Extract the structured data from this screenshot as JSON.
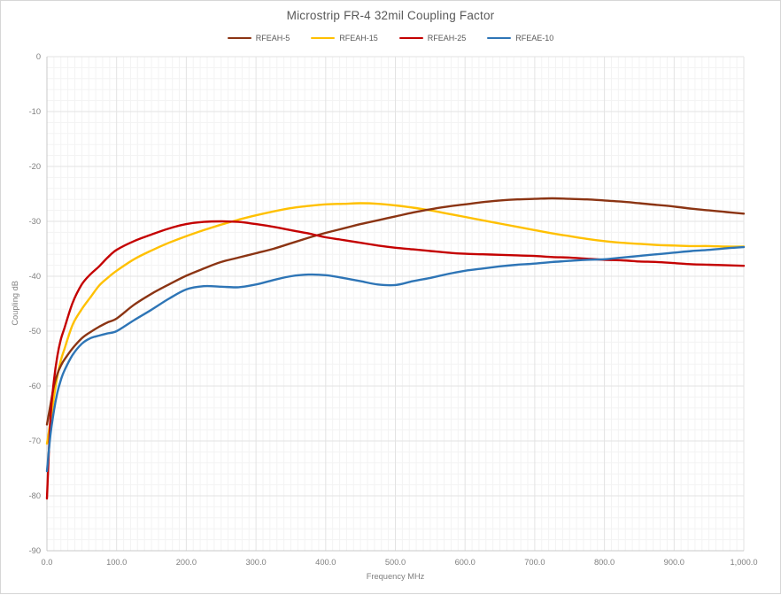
{
  "title": "Microstrip FR-4 32mil Coupling Factor",
  "legend": [
    {
      "label": "RFEAH-5",
      "color": "#8B3413"
    },
    {
      "label": "RFEAH-15",
      "color": "#FFC000"
    },
    {
      "label": "RFEAH-25",
      "color": "#C40000"
    },
    {
      "label": "RFEAE-10",
      "color": "#2E75B6"
    }
  ],
  "chart_data": {
    "type": "line",
    "title": "Microstrip FR-4 32mil Coupling Factor",
    "xlabel": "Frequency MHz",
    "ylabel": "Coupling dB",
    "xlim": [
      0,
      1000
    ],
    "ylim": [
      -90,
      0
    ],
    "x_major_step": 100,
    "x_minor_step": 10,
    "y_major_step": 10,
    "y_minor_step": 2,
    "grid": "major+minor",
    "legend_position": "top",
    "x_tick_labels": [
      "0.0",
      "100.0",
      "200.0",
      "300.0",
      "400.0",
      "500.0",
      "600.0",
      "700.0",
      "800.0",
      "900.0",
      "1,000.0"
    ],
    "y_tick_labels": [
      "0",
      "-10",
      "-20",
      "-30",
      "-40",
      "-50",
      "-60",
      "-70",
      "-80",
      "-90"
    ],
    "series": [
      {
        "name": "RFEAH-5",
        "color": "#8B3413",
        "points": [
          [
            0,
            -67
          ],
          [
            5,
            -63.5
          ],
          [
            10,
            -60
          ],
          [
            15,
            -57.8
          ],
          [
            20,
            -56.3
          ],
          [
            25,
            -55.2
          ],
          [
            37,
            -53.1
          ],
          [
            50,
            -51.3
          ],
          [
            62,
            -50.2
          ],
          [
            75,
            -49.2
          ],
          [
            87,
            -48.4
          ],
          [
            100,
            -47.7
          ],
          [
            125,
            -45.2
          ],
          [
            150,
            -43.2
          ],
          [
            175,
            -41.5
          ],
          [
            200,
            -39.9
          ],
          [
            225,
            -38.6
          ],
          [
            250,
            -37.4
          ],
          [
            275,
            -36.6
          ],
          [
            300,
            -35.8
          ],
          [
            325,
            -35
          ],
          [
            350,
            -34
          ],
          [
            375,
            -33
          ],
          [
            400,
            -32.1
          ],
          [
            425,
            -31.3
          ],
          [
            450,
            -30.5
          ],
          [
            475,
            -29.8
          ],
          [
            500,
            -29.1
          ],
          [
            525,
            -28.4
          ],
          [
            550,
            -27.8
          ],
          [
            575,
            -27.3
          ],
          [
            600,
            -26.9
          ],
          [
            625,
            -26.5
          ],
          [
            650,
            -26.2
          ],
          [
            675,
            -26
          ],
          [
            700,
            -25.9
          ],
          [
            725,
            -25.8
          ],
          [
            750,
            -25.9
          ],
          [
            775,
            -26
          ],
          [
            800,
            -26.2
          ],
          [
            825,
            -26.4
          ],
          [
            850,
            -26.7
          ],
          [
            875,
            -27
          ],
          [
            900,
            -27.3
          ],
          [
            925,
            -27.7
          ],
          [
            950,
            -28
          ],
          [
            975,
            -28.3
          ],
          [
            1000,
            -28.6
          ]
        ]
      },
      {
        "name": "RFEAH-15",
        "color": "#FFC000",
        "points": [
          [
            0,
            -70.5
          ],
          [
            5,
            -66.5
          ],
          [
            10,
            -62
          ],
          [
            15,
            -58.2
          ],
          [
            20,
            -55.3
          ],
          [
            25,
            -53.3
          ],
          [
            37,
            -48.8
          ],
          [
            50,
            -46
          ],
          [
            62,
            -43.9
          ],
          [
            75,
            -41.7
          ],
          [
            87,
            -40.3
          ],
          [
            100,
            -39
          ],
          [
            125,
            -36.9
          ],
          [
            150,
            -35.3
          ],
          [
            175,
            -33.9
          ],
          [
            200,
            -32.7
          ],
          [
            225,
            -31.6
          ],
          [
            250,
            -30.6
          ],
          [
            275,
            -29.7
          ],
          [
            300,
            -28.9
          ],
          [
            325,
            -28.2
          ],
          [
            350,
            -27.6
          ],
          [
            375,
            -27.2
          ],
          [
            400,
            -26.9
          ],
          [
            425,
            -26.8
          ],
          [
            450,
            -26.7
          ],
          [
            475,
            -26.8
          ],
          [
            500,
            -27.1
          ],
          [
            525,
            -27.5
          ],
          [
            550,
            -28
          ],
          [
            575,
            -28.6
          ],
          [
            600,
            -29.2
          ],
          [
            625,
            -29.8
          ],
          [
            650,
            -30.4
          ],
          [
            675,
            -31
          ],
          [
            700,
            -31.6
          ],
          [
            725,
            -32.2
          ],
          [
            750,
            -32.7
          ],
          [
            775,
            -33.2
          ],
          [
            800,
            -33.6
          ],
          [
            825,
            -33.9
          ],
          [
            850,
            -34.1
          ],
          [
            875,
            -34.3
          ],
          [
            900,
            -34.4
          ],
          [
            925,
            -34.5
          ],
          [
            950,
            -34.5
          ],
          [
            975,
            -34.6
          ],
          [
            1000,
            -34.6
          ]
        ]
      },
      {
        "name": "RFEAH-25",
        "color": "#C40000",
        "points": [
          [
            0,
            -80.5
          ],
          [
            5,
            -66
          ],
          [
            10,
            -59
          ],
          [
            15,
            -54.5
          ],
          [
            20,
            -51.5
          ],
          [
            25,
            -49.5
          ],
          [
            37,
            -44.8
          ],
          [
            50,
            -41.5
          ],
          [
            62,
            -39.7
          ],
          [
            75,
            -38.2
          ],
          [
            87,
            -36.6
          ],
          [
            100,
            -35.2
          ],
          [
            125,
            -33.6
          ],
          [
            150,
            -32.4
          ],
          [
            175,
            -31.3
          ],
          [
            200,
            -30.5
          ],
          [
            225,
            -30.1
          ],
          [
            250,
            -30
          ],
          [
            275,
            -30.1
          ],
          [
            300,
            -30.5
          ],
          [
            325,
            -31
          ],
          [
            350,
            -31.6
          ],
          [
            375,
            -32.2
          ],
          [
            400,
            -32.9
          ],
          [
            425,
            -33.4
          ],
          [
            450,
            -33.9
          ],
          [
            475,
            -34.4
          ],
          [
            500,
            -34.8
          ],
          [
            525,
            -35.1
          ],
          [
            550,
            -35.4
          ],
          [
            575,
            -35.7
          ],
          [
            600,
            -35.9
          ],
          [
            625,
            -36
          ],
          [
            650,
            -36.1
          ],
          [
            675,
            -36.2
          ],
          [
            700,
            -36.3
          ],
          [
            725,
            -36.5
          ],
          [
            750,
            -36.6
          ],
          [
            775,
            -36.8
          ],
          [
            800,
            -37
          ],
          [
            825,
            -37.1
          ],
          [
            850,
            -37.3
          ],
          [
            875,
            -37.4
          ],
          [
            900,
            -37.6
          ],
          [
            925,
            -37.8
          ],
          [
            950,
            -37.9
          ],
          [
            975,
            -38
          ],
          [
            1000,
            -38.1
          ]
        ]
      },
      {
        "name": "RFEAE-10",
        "color": "#2E75B6",
        "points": [
          [
            0,
            -75.5
          ],
          [
            5,
            -69
          ],
          [
            10,
            -64.5
          ],
          [
            15,
            -61.2
          ],
          [
            20,
            -58.9
          ],
          [
            25,
            -57.2
          ],
          [
            37,
            -54.3
          ],
          [
            50,
            -52.3
          ],
          [
            62,
            -51.3
          ],
          [
            75,
            -50.8
          ],
          [
            87,
            -50.4
          ],
          [
            100,
            -50
          ],
          [
            125,
            -48
          ],
          [
            150,
            -46.1
          ],
          [
            175,
            -44.1
          ],
          [
            200,
            -42.4
          ],
          [
            225,
            -41.8
          ],
          [
            250,
            -41.9
          ],
          [
            275,
            -42
          ],
          [
            300,
            -41.5
          ],
          [
            325,
            -40.7
          ],
          [
            350,
            -40
          ],
          [
            375,
            -39.7
          ],
          [
            400,
            -39.8
          ],
          [
            425,
            -40.3
          ],
          [
            450,
            -40.9
          ],
          [
            475,
            -41.5
          ],
          [
            500,
            -41.6
          ],
          [
            525,
            -40.9
          ],
          [
            550,
            -40.3
          ],
          [
            575,
            -39.6
          ],
          [
            600,
            -39
          ],
          [
            625,
            -38.6
          ],
          [
            650,
            -38.2
          ],
          [
            675,
            -37.9
          ],
          [
            700,
            -37.7
          ],
          [
            725,
            -37.4
          ],
          [
            750,
            -37.2
          ],
          [
            775,
            -37
          ],
          [
            800,
            -36.9
          ],
          [
            825,
            -36.6
          ],
          [
            850,
            -36.3
          ],
          [
            875,
            -36
          ],
          [
            900,
            -35.7
          ],
          [
            925,
            -35.4
          ],
          [
            950,
            -35.2
          ],
          [
            975,
            -34.9
          ],
          [
            1000,
            -34.7
          ]
        ]
      }
    ]
  }
}
